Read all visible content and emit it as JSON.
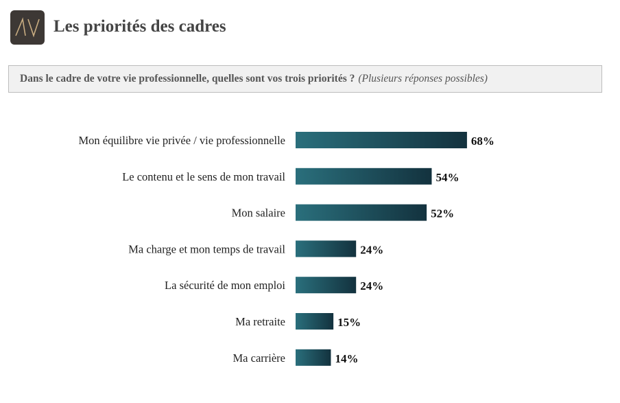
{
  "header": {
    "title": "Les priorités des cadres"
  },
  "question": {
    "main": "Dans le cadre de votre vie professionnelle, quelles sont vos trois priorités ?",
    "note": "(Plusieurs réponses possibles)"
  },
  "colors": {
    "bar_light": "#2a6f7c",
    "bar_dark": "#13323e",
    "logo_bg": "#3d3835",
    "logo_mark": "#c9ad82"
  },
  "chart_data": {
    "type": "bar",
    "orientation": "horizontal",
    "title": "Les priorités des cadres",
    "categories": [
      "Mon équilibre vie privée / vie professionnelle",
      "Le contenu et le sens de mon travail",
      "Mon salaire",
      "Ma charge et mon temps de travail",
      "La sécurité de mon emploi",
      "Ma retraite",
      "Ma carrière"
    ],
    "values": [
      68,
      54,
      52,
      24,
      24,
      15,
      14
    ],
    "value_labels": [
      "68%",
      "54%",
      "52%",
      "24%",
      "24%",
      "15%",
      "14%"
    ],
    "unit": "%",
    "xlim": [
      0,
      100
    ],
    "grid": false,
    "legend": "none"
  }
}
